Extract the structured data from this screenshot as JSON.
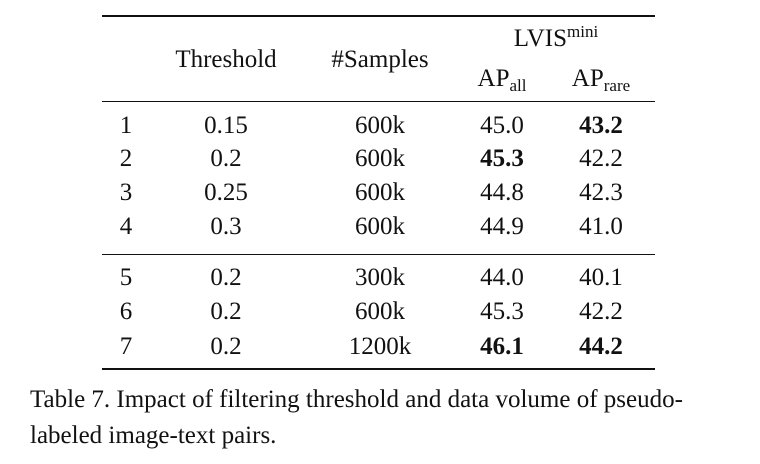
{
  "table": {
    "headers": {
      "threshold": "Threshold",
      "samples": "#Samples",
      "group": {
        "base": "LVIS",
        "sup": "mini"
      },
      "ap_all": {
        "base": "AP",
        "sub": "all"
      },
      "ap_rare": {
        "base": "AP",
        "sub": "rare"
      }
    },
    "rows": [
      {
        "idx": "1",
        "threshold": "0.15",
        "samples": "600k",
        "ap_all": "45.0",
        "ap_rare": "43.2",
        "bold_all": false,
        "bold_rare": true
      },
      {
        "idx": "2",
        "threshold": "0.2",
        "samples": "600k",
        "ap_all": "45.3",
        "ap_rare": "42.2",
        "bold_all": true,
        "bold_rare": false
      },
      {
        "idx": "3",
        "threshold": "0.25",
        "samples": "600k",
        "ap_all": "44.8",
        "ap_rare": "42.3",
        "bold_all": false,
        "bold_rare": false
      },
      {
        "idx": "4",
        "threshold": "0.3",
        "samples": "600k",
        "ap_all": "44.9",
        "ap_rare": "41.0",
        "bold_all": false,
        "bold_rare": false
      },
      {
        "idx": "5",
        "threshold": "0.2",
        "samples": "300k",
        "ap_all": "44.0",
        "ap_rare": "40.1",
        "bold_all": false,
        "bold_rare": false
      },
      {
        "idx": "6",
        "threshold": "0.2",
        "samples": "600k",
        "ap_all": "45.3",
        "ap_rare": "42.2",
        "bold_all": false,
        "bold_rare": false
      },
      {
        "idx": "7",
        "threshold": "0.2",
        "samples": "1200k",
        "ap_all": "46.1",
        "ap_rare": "44.2",
        "bold_all": true,
        "bold_rare": true
      }
    ]
  },
  "caption": "Table 7. Impact of filtering threshold and data volume of pseudo-labeled image-text pairs."
}
